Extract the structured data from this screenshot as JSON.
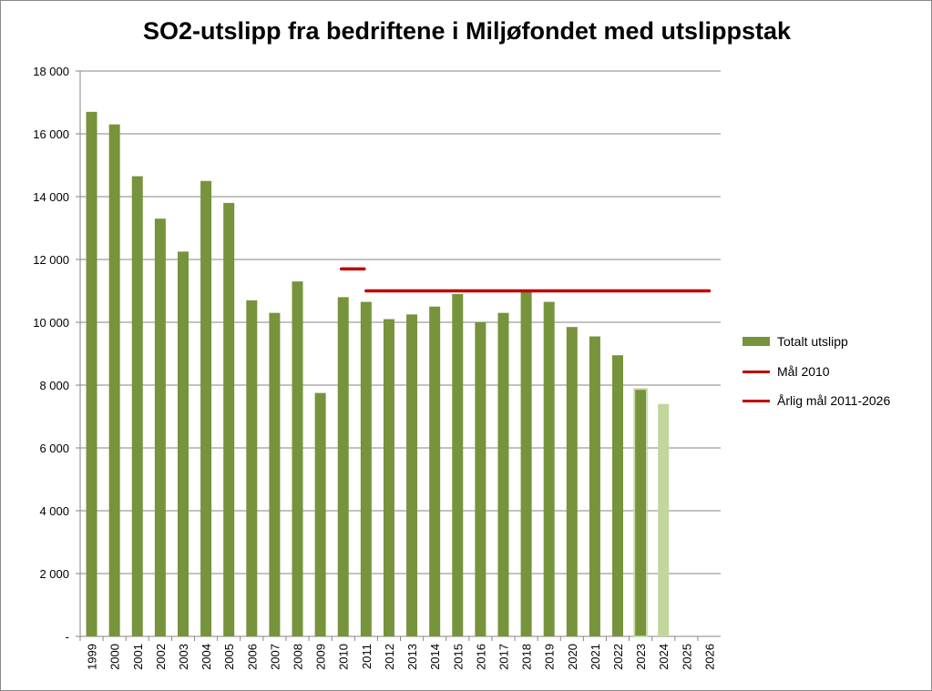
{
  "chart_data": {
    "type": "bar",
    "title": "SO2-utslipp fra bedriftene i Miljøfondet med utslippstak",
    "xlabel": "",
    "ylabel": "",
    "ylim": [
      0,
      18000
    ],
    "yticks": [
      0,
      2000,
      4000,
      6000,
      8000,
      10000,
      12000,
      14000,
      16000,
      18000
    ],
    "ytick_labels": [
      "-",
      "2 000",
      "4 000",
      "6 000",
      "8 000",
      "10 000",
      "12 000",
      "14 000",
      "16 000",
      "18 000"
    ],
    "categories": [
      "1999",
      "2000",
      "2001",
      "2002",
      "2003",
      "2004",
      "2005",
      "2006",
      "2007",
      "2008",
      "2009",
      "2010",
      "2011",
      "2012",
      "2013",
      "2014",
      "2015",
      "2016",
      "2017",
      "2018",
      "2019",
      "2020",
      "2021",
      "2022",
      "2023",
      "2024",
      "2025",
      "2026"
    ],
    "grid": true,
    "legend_position": "right",
    "series": [
      {
        "name": "Totalt utslipp",
        "type": "bar",
        "color": "#77933c",
        "values": [
          16700,
          16300,
          14650,
          13300,
          12250,
          14500,
          13800,
          10700,
          10300,
          11300,
          7750,
          10800,
          10650,
          10100,
          10250,
          10500,
          10900,
          10000,
          10300,
          11000,
          10650,
          9850,
          9550,
          8950,
          7850,
          7400,
          null,
          null
        ],
        "light_color": "#c3d69b",
        "light_from": "2024"
      },
      {
        "name": "Mål 2010",
        "type": "line",
        "color": "#c00000",
        "values_by_year": {
          "2010": 11700
        }
      },
      {
        "name": "Årlig mål 2011-2026",
        "type": "line",
        "color": "#c00000",
        "value": 11000,
        "from": "2011",
        "to": "2026"
      }
    ]
  }
}
